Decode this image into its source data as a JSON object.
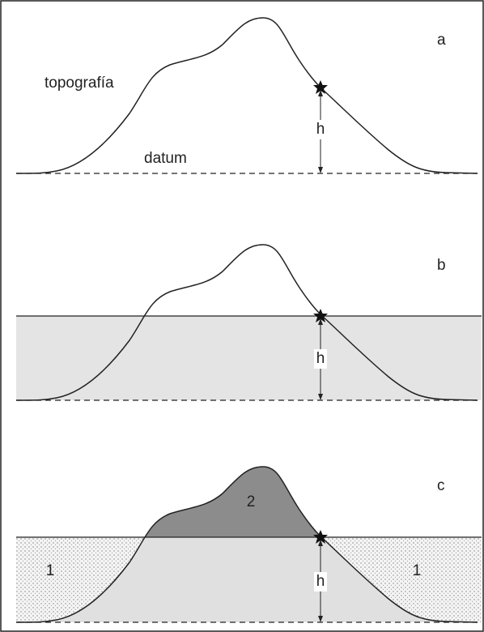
{
  "panels": [
    {
      "label": "a",
      "annotations": [
        "topografía",
        "datum"
      ],
      "height_label": "h"
    },
    {
      "label": "b",
      "height_label": "h"
    },
    {
      "label": "c",
      "height_label": "h",
      "zones": [
        "2",
        "1",
        "1"
      ]
    }
  ]
}
